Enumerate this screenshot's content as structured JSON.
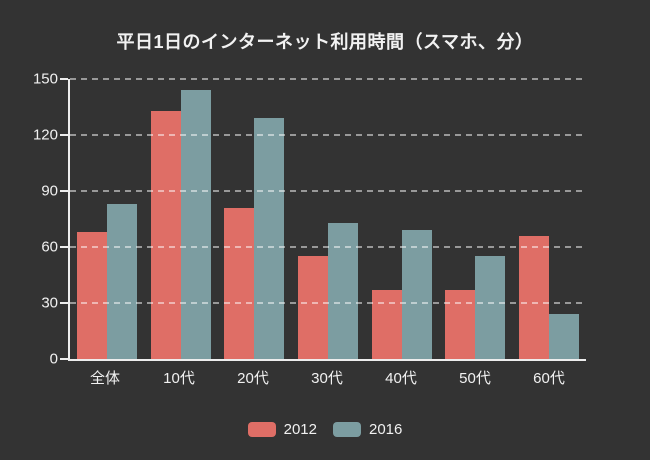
{
  "chart_data": {
    "type": "bar",
    "title": "平日1日のインターネット利用時間（スマホ、分）",
    "categories": [
      "全体",
      "10代",
      "20代",
      "30代",
      "40代",
      "50代",
      "60代"
    ],
    "series": [
      {
        "name": "2012",
        "color": "#df6e66",
        "values": [
          68,
          133,
          81,
          55,
          37,
          37,
          66
        ]
      },
      {
        "name": "2016",
        "color": "#7c9da1",
        "values": [
          83,
          144,
          129,
          73,
          69,
          55,
          24
        ]
      }
    ],
    "xlabel": "",
    "ylabel": "",
    "ylim": [
      0,
      150
    ],
    "y_ticks": [
      0,
      30,
      60,
      90,
      120,
      150
    ],
    "grid": "horizontal-dashed",
    "legend_position": "bottom"
  },
  "colors": {
    "background": "#333333",
    "text": "#f1f1f1",
    "axis": "#ededed",
    "gridline": "rgba(255,255,255,0.5)"
  }
}
